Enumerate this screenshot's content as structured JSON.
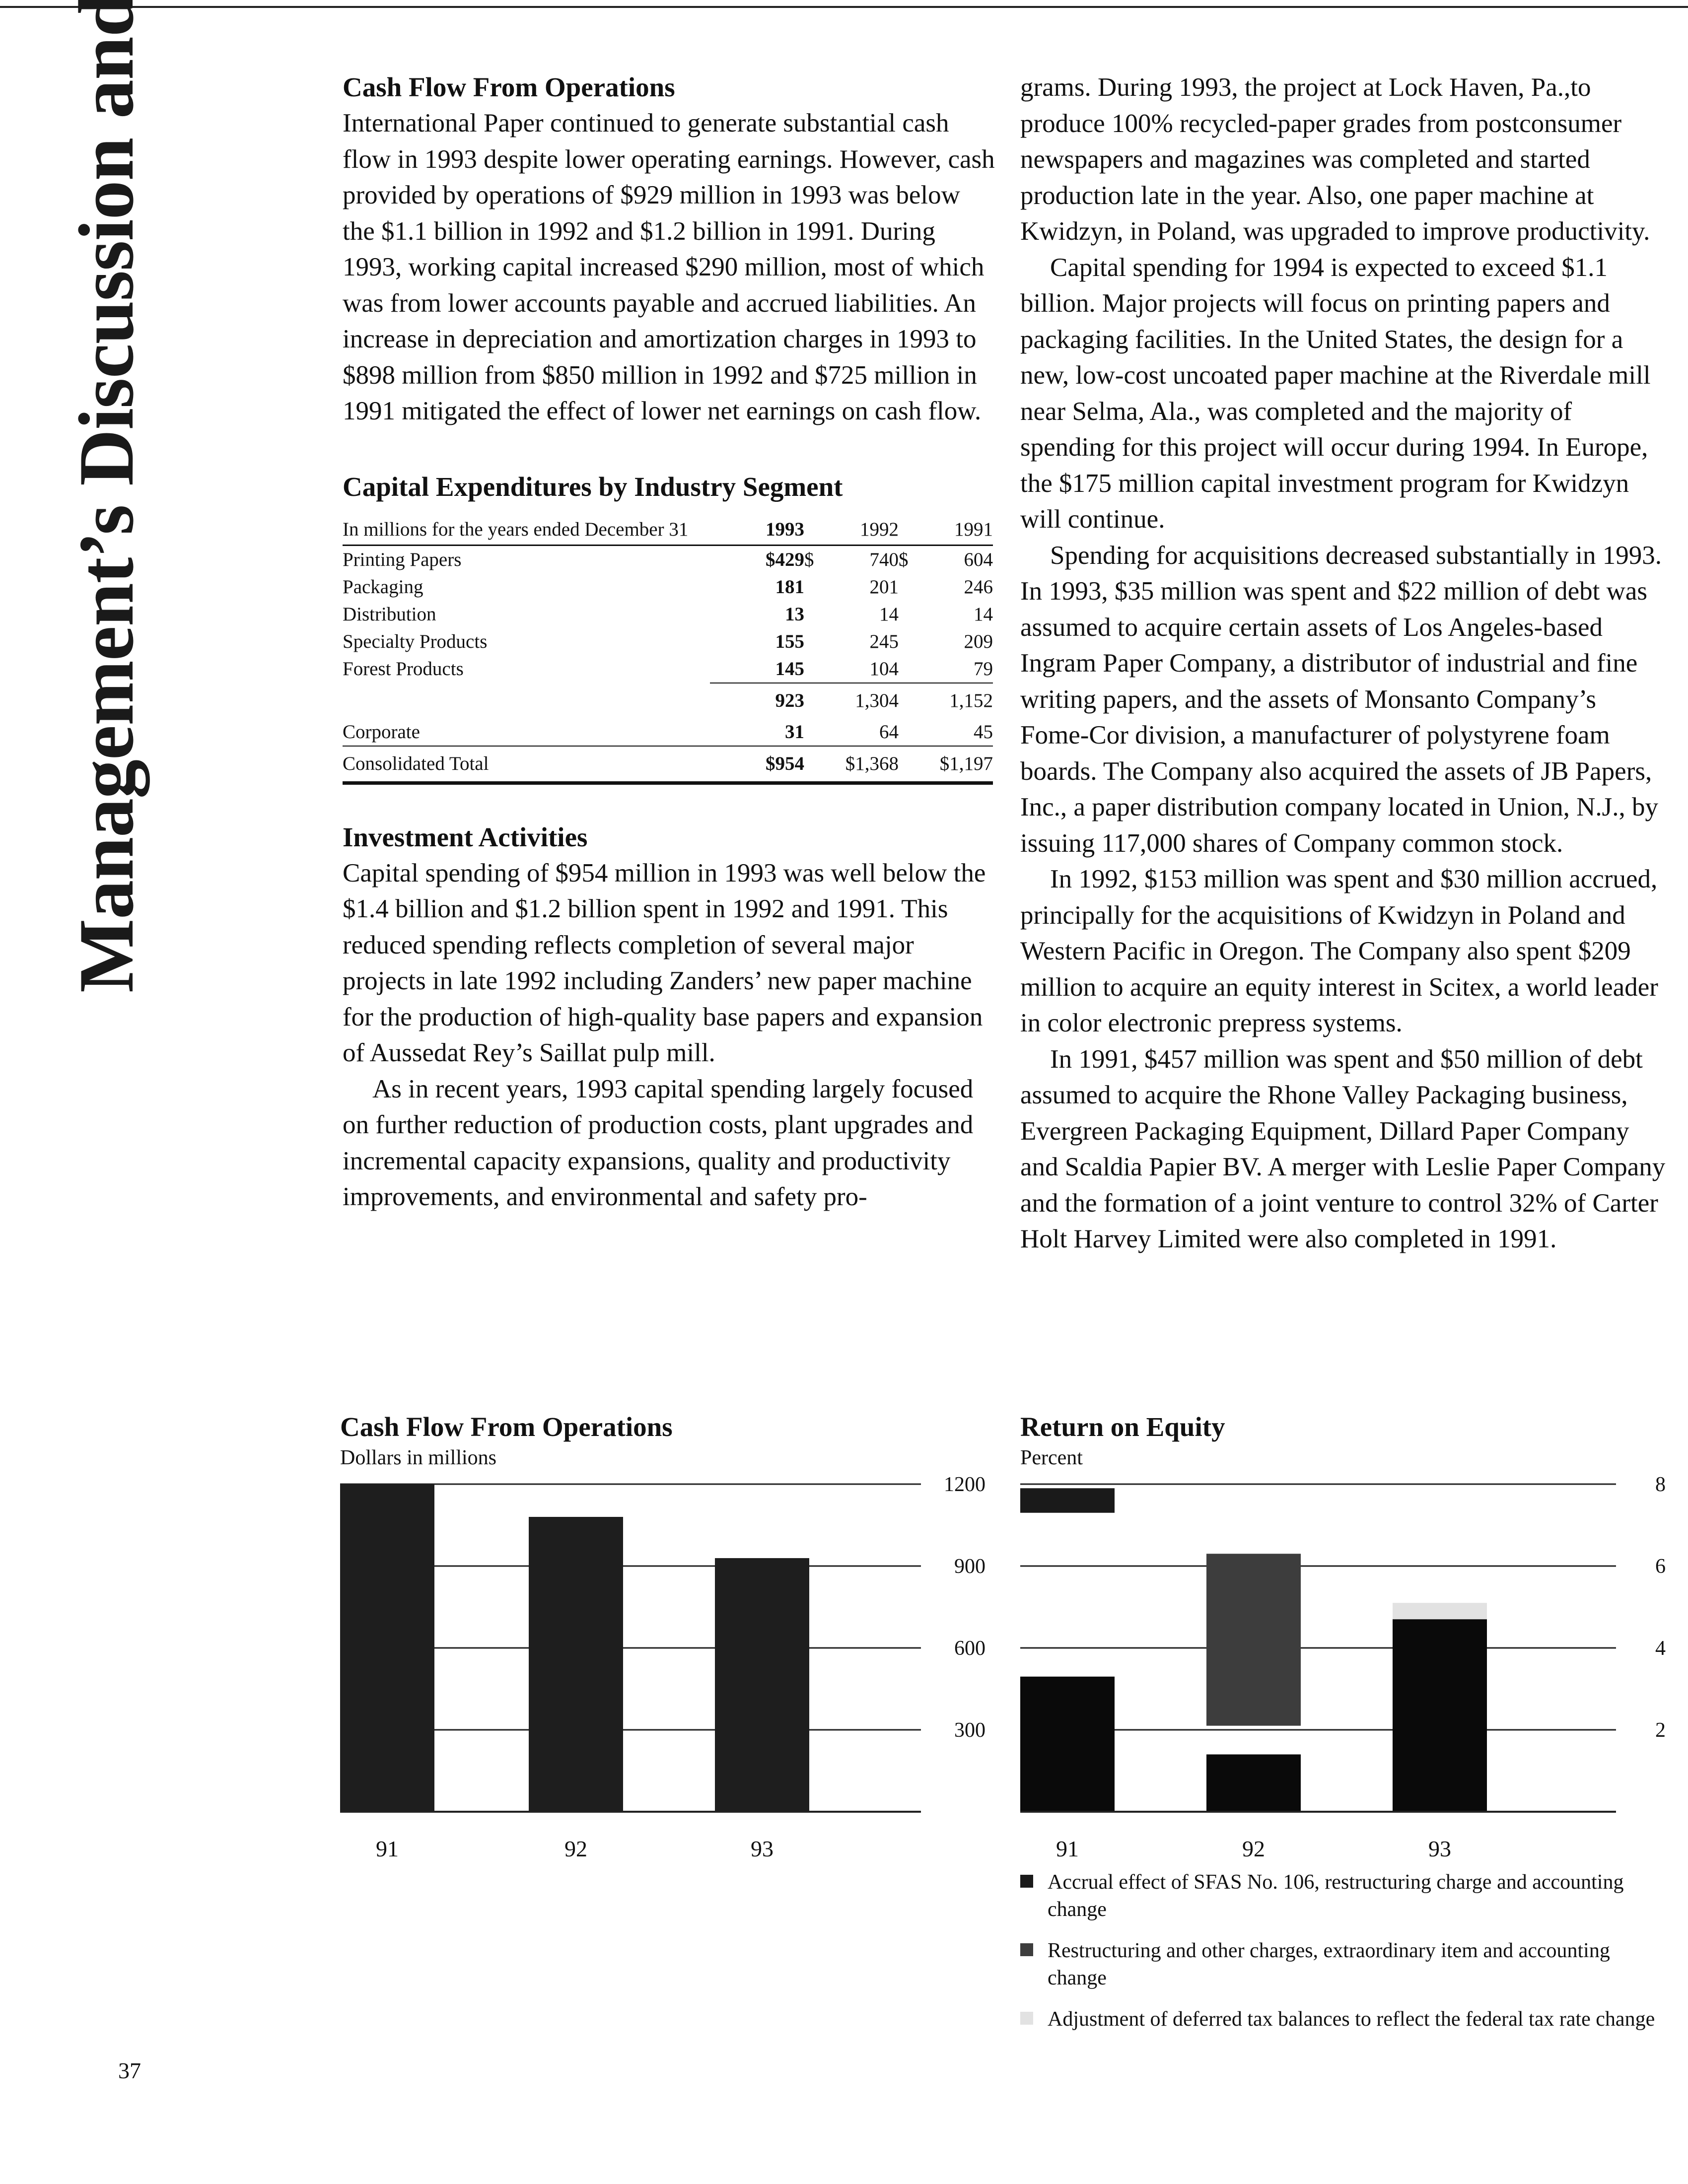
{
  "sidebar": {
    "title": "Management’s Discussion and Analysis"
  },
  "page_number": "37",
  "cash_flow_section": {
    "heading": "Cash Flow From Operations",
    "paragraph": "International Paper continued to generate substantial cash flow in 1993 despite lower operating earnings. However, cash provided by operations of $929 million in 1993 was below the $1.1 billion in 1992 and $1.2 billion in 1991. During 1993, working capital increased $290 million, most of which was from lower accounts payable and accrued liabilities. An increase in depreciation and amortization charges in 1993 to $898 million from $850 million in 1992 and $725 million in 1991 mitigated the effect of lower net earnings on cash flow."
  },
  "capex_table": {
    "heading": "Capital Expenditures by Industry Segment",
    "header": {
      "label": "In millions for the years ended December 31",
      "y1993": "1993",
      "y1992": "1992",
      "y1991": "1991"
    },
    "rows": [
      {
        "label": "Printing Papers",
        "y1993": "$429",
        "cur1992": "$",
        "y1992": "740",
        "cur1991": "$",
        "y1991": "604"
      },
      {
        "label": "Packaging",
        "y1993": "181",
        "y1992": "201",
        "y1991": "246"
      },
      {
        "label": "Distribution",
        "y1993": "13",
        "y1992": "14",
        "y1991": "14"
      },
      {
        "label": "Specialty Products",
        "y1993": "155",
        "y1992": "245",
        "y1991": "209"
      },
      {
        "label": "Forest Products",
        "y1993": "145",
        "y1992": "104",
        "y1991": "79"
      }
    ],
    "subtotal": {
      "y1993": "923",
      "y1992": "1,304",
      "y1991": "1,152"
    },
    "corporate": {
      "label": "Corporate",
      "y1993": "31",
      "y1992": "64",
      "y1991": "45"
    },
    "total": {
      "label": "Consolidated Total",
      "y1993": "$954",
      "y1992": "$1,368",
      "y1991": "$1,197"
    }
  },
  "investment_section": {
    "heading": "Investment Activities",
    "paragraph1": "Capital spending of $954 million in 1993 was well below the $1.4 billion and $1.2 billion spent in 1992 and 1991. This reduced spending reflects completion of several major projects in late 1992 including Zanders’ new paper machine for the production of high-quality base papers and expansion of Aussedat Rey’s Saillat pulp mill.",
    "paragraph2": "As in recent years, 1993 capital spending largely focused on further reduction of production costs, plant upgrades and incremental capacity expansions, quality and productivity improvements, and environmental and safety pro-"
  },
  "right_column": {
    "paragraph1": "grams. During 1993, the project at Lock Haven, Pa.,to produce 100% recycled-paper grades from postconsumer newspapers and magazines was completed and started production late in the year. Also, one paper machine at Kwidzyn, in Poland, was upgraded to improve productivity.",
    "paragraph2": "Capital spending for 1994 is expected to exceed $1.1 billion. Major projects will focus on printing papers and packaging facilities. In the United States, the design for a new, low-cost uncoated paper machine at the Riverdale mill near Selma, Ala., was completed and the majority of spending for this project will occur during 1994. In Europe, the $175 million capital investment program for Kwidzyn will continue.",
    "paragraph3": "Spending for acquisitions decreased substantially in 1993. In 1993, $35 million was spent and $22 million of debt was assumed to acquire certain assets of Los Angeles-based Ingram Paper Company, a distributor of industrial and fine writing papers, and the assets of Monsanto Company’s Fome-Cor division, a manufacturer of polystyrene foam boards. The Company also acquired the assets of JB Papers, Inc., a paper distribution company located in Union, N.J., by issuing 117,000 shares of Company common stock.",
    "paragraph4": "In 1992, $153 million was spent and $30 million accrued, principally for the acquisitions of Kwidzyn in Poland and Western Pacific in Oregon. The Company also spent $209 million to acquire an equity interest in Scitex, a world leader in color electronic prepress systems.",
    "paragraph5": "In 1991, $457 million was spent and $50 million of debt assumed to acquire the Rhone Valley Packaging business, Evergreen Packaging Equipment, Dillard Paper Company and Scaldia Papier BV. A merger with Leslie Paper Company and the formation of a joint venture to control 32% of Carter Holt Harvey Limited were also completed in 1991."
  },
  "chart_data": [
    {
      "type": "bar",
      "title": "Cash Flow From Operations",
      "subtitle": "Dollars in millions",
      "categories": [
        "91",
        "92",
        "93"
      ],
      "values": [
        1200,
        1080,
        929
      ],
      "ylim": [
        0,
        1200
      ],
      "yticks": [
        "300",
        "600",
        "900",
        "1200"
      ],
      "grid": true,
      "bar_color": "#1e1e1e"
    },
    {
      "type": "bar",
      "title": "Return on Equity",
      "subtitle": "Percent",
      "categories": [
        "91",
        "92",
        "93"
      ],
      "ylim": [
        0,
        8
      ],
      "yticks": [
        "2",
        "4",
        "6",
        "8"
      ],
      "grid": true,
      "series": [
        {
          "name": "Accrual effect of SFAS No. 106, restructuring charge and accounting change",
          "color": "#1a1a1a",
          "stacks": [
            [
              7.3,
              7.9
            ],
            null,
            null
          ]
        },
        {
          "name": "Restructuring and other charges, extraordinary item and accounting change",
          "color": "#3d3d3d",
          "stacks": [
            null,
            [
              2.1,
              6.3
            ],
            null
          ]
        },
        {
          "name": "Adjustment of deferred tax balances to reflect the federal tax rate change",
          "color": "#e2e2e2",
          "stacks": [
            null,
            null,
            [
              4.7,
              5.1
            ]
          ]
        },
        {
          "name": "",
          "color": "#0a0a0a",
          "stacks": [
            [
              0,
              3.3
            ],
            [
              0,
              1.4
            ],
            [
              0,
              4.7
            ]
          ]
        }
      ]
    }
  ],
  "legend": {
    "item1": "Accrual effect of SFAS No. 106, restructuring charge and accounting change",
    "item2": "Restructuring and other charges, extraordinary item and accounting change",
    "item3": "Adjustment of deferred tax balances to reflect the federal tax rate change",
    "color1": "#1a1a1a",
    "color2": "#3d3d3d",
    "color3": "#e2e2e2"
  }
}
